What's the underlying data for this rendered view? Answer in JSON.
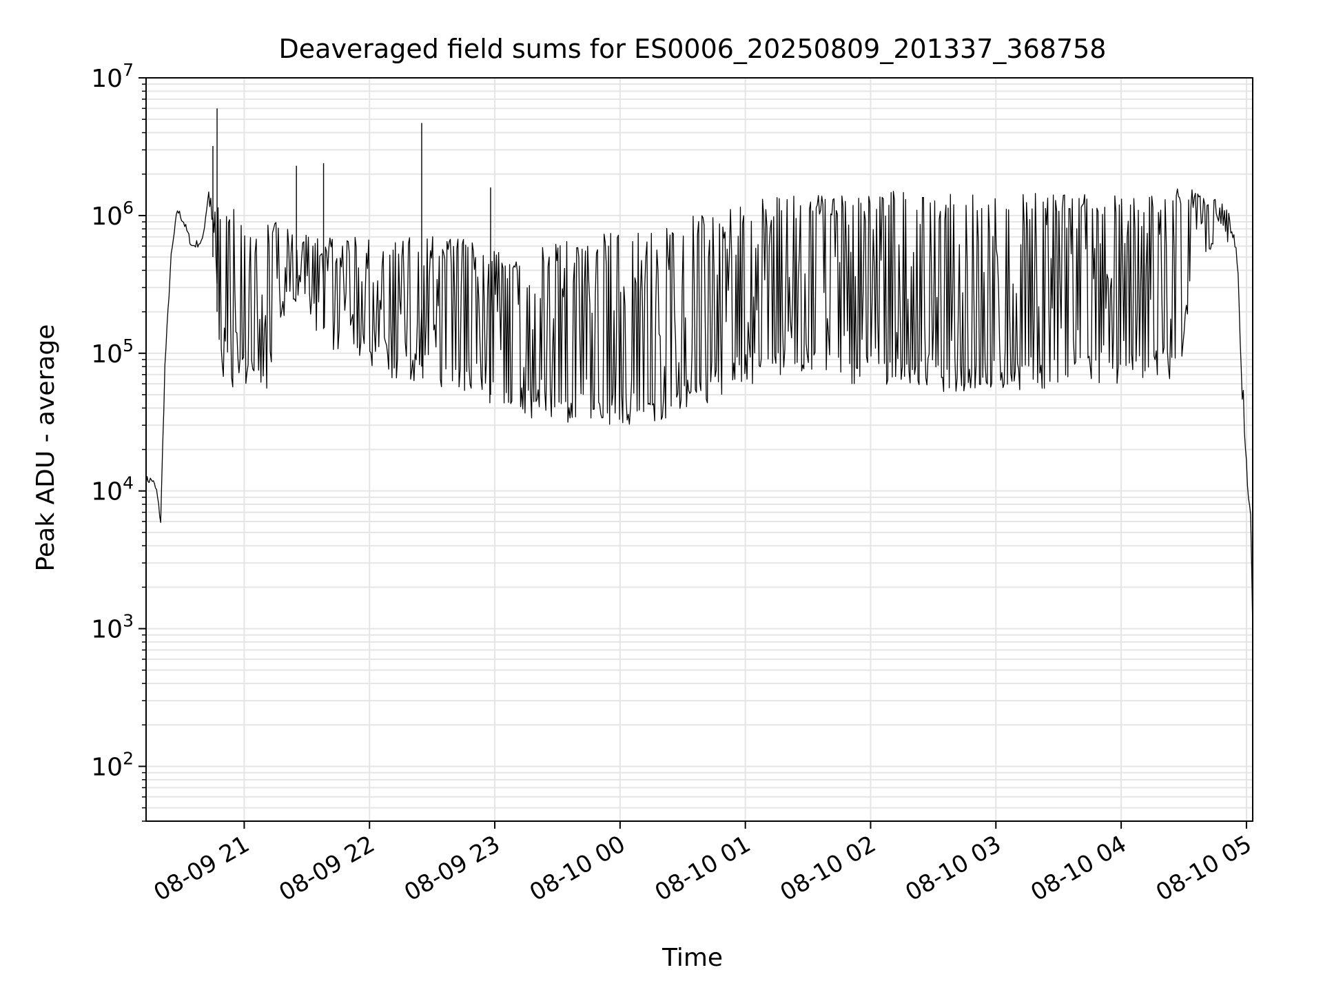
{
  "chart_data": {
    "type": "line",
    "title": "Deaveraged field sums for ES0006_20250809_201337_368758",
    "xlabel": "Time",
    "ylabel": "Peak ADU - average",
    "yscale": "log",
    "ylim": [
      40,
      10000000
    ],
    "xlim": [
      "2025-08-09 20:13",
      "2025-08-10 05:03"
    ],
    "grid": true,
    "legend": "none",
    "line_color": "#000000",
    "grid_color": "#e5e5e5",
    "x_ticks": [
      {
        "t": "2025-08-09 21:00",
        "label": "08-09 21"
      },
      {
        "t": "2025-08-09 22:00",
        "label": "08-09 22"
      },
      {
        "t": "2025-08-09 23:00",
        "label": "08-09 23"
      },
      {
        "t": "2025-08-10 00:00",
        "label": "08-10 00"
      },
      {
        "t": "2025-08-10 01:00",
        "label": "08-10 01"
      },
      {
        "t": "2025-08-10 02:00",
        "label": "08-10 02"
      },
      {
        "t": "2025-08-10 03:00",
        "label": "08-10 03"
      },
      {
        "t": "2025-08-10 04:00",
        "label": "08-10 04"
      },
      {
        "t": "2025-08-10 05:00",
        "label": "08-10 05"
      }
    ],
    "y_ticks": [
      {
        "value": 100,
        "base": "10",
        "exp": "2"
      },
      {
        "value": 1000,
        "base": "10",
        "exp": "3"
      },
      {
        "value": 10000,
        "base": "10",
        "exp": "4"
      },
      {
        "value": 100000,
        "base": "10",
        "exp": "5"
      },
      {
        "value": 1000000,
        "base": "10",
        "exp": "6"
      },
      {
        "value": 10000000,
        "base": "10",
        "exp": "7"
      }
    ],
    "series": [
      {
        "x": [
          "2025-08-09 20:13",
          "2025-08-09 20:16",
          "2025-08-09 20:18",
          "2025-08-09 20:20",
          "2025-08-09 20:22",
          "2025-08-09 20:25",
          "2025-08-09 20:28",
          "2025-08-09 20:31",
          "2025-08-09 20:35",
          "2025-08-09 20:40",
          "2025-08-09 20:43",
          "2025-08-09 20:45",
          "2025-08-09 20:47",
          "2025-08-09 20:49",
          "2025-08-09 20:52",
          "2025-08-09 20:55",
          "2025-08-09 20:58",
          "2025-08-09 21:03",
          "2025-08-09 21:08",
          "2025-08-09 21:13",
          "2025-08-09 21:18",
          "2025-08-09 21:23",
          "2025-08-09 21:28",
          "2025-08-09 21:34",
          "2025-08-09 21:40",
          "2025-08-09 21:46",
          "2025-08-09 21:52",
          "2025-08-09 21:58",
          "2025-08-09 22:05",
          "2025-08-09 22:15",
          "2025-08-09 22:25",
          "2025-08-09 22:35",
          "2025-08-09 22:45",
          "2025-08-09 22:55",
          "2025-08-09 23:05",
          "2025-08-09 23:15",
          "2025-08-09 23:25",
          "2025-08-09 23:35",
          "2025-08-09 23:45",
          "2025-08-09 23:55",
          "2025-08-10 00:05",
          "2025-08-10 00:15",
          "2025-08-10 00:25",
          "2025-08-10 00:35",
          "2025-08-10 00:45",
          "2025-08-10 00:55",
          "2025-08-10 01:05",
          "2025-08-10 01:20",
          "2025-08-10 01:35",
          "2025-08-10 01:50",
          "2025-08-10 02:05",
          "2025-08-10 02:20",
          "2025-08-10 02:35",
          "2025-08-10 02:50",
          "2025-08-10 03:05",
          "2025-08-10 03:20",
          "2025-08-10 03:35",
          "2025-08-10 03:50",
          "2025-08-10 04:05",
          "2025-08-10 04:20",
          "2025-08-10 04:28",
          "2025-08-10 04:35",
          "2025-08-10 04:40",
          "2025-08-10 04:45",
          "2025-08-10 04:50",
          "2025-08-10 04:54",
          "2025-08-10 04:56",
          "2025-08-10 04:58",
          "2025-08-10 05:00",
          "2025-08-10 05:01",
          "2025-08-10 05:02",
          "2025-08-10 05:03"
        ],
        "baseline": [
          12000,
          12000,
          10000,
          6000,
          80000,
          500000,
          1100000,
          900000,
          600000,
          650000,
          1500000,
          500000,
          200000,
          90000,
          80000,
          75000,
          72000,
          70000,
          65000,
          60000,
          200000,
          300000,
          350000,
          200000,
          150000,
          120000,
          150000,
          100000,
          90000,
          85000,
          80000,
          75000,
          70000,
          60000,
          50000,
          45000,
          42000,
          40000,
          38000,
          38000,
          40000,
          42000,
          45000,
          50000,
          60000,
          70000,
          80000,
          85000,
          80000,
          75000,
          70000,
          70000,
          70000,
          70000,
          72000,
          72000,
          75000,
          78000,
          80000,
          85000,
          90000,
          450000,
          500000,
          600000,
          900000,
          700000,
          300000,
          50000,
          10000,
          9000,
          7000,
          1000
        ],
        "envelope": [
          12000,
          12000,
          10000,
          6000,
          80000,
          500000,
          1100000,
          900000,
          600000,
          650000,
          1500000,
          1400000,
          1300000,
          1250000,
          1200000,
          1200000,
          1100000,
          700000,
          800000,
          900000,
          1000000,
          800000,
          750000,
          700000,
          700000,
          700000,
          700000,
          700000,
          650000,
          700000,
          750000,
          750000,
          700000,
          650000,
          500000,
          550000,
          600000,
          650000,
          700000,
          750000,
          800000,
          850000,
          900000,
          1000000,
          1100000,
          1200000,
          1300000,
          1400000,
          1400000,
          1450000,
          1500000,
          1500000,
          1500000,
          1500000,
          1500000,
          1500000,
          1500000,
          1450000,
          1400000,
          1450000,
          1600000,
          1550000,
          1500000,
          1400000,
          1200000,
          700000,
          400000,
          80000,
          20000,
          10000,
          7000,
          1000
        ]
      }
    ],
    "spikes": [
      {
        "x": "2025-08-09 20:47",
        "y": 6000000
      },
      {
        "x": "2025-08-09 20:45",
        "y": 3200000
      },
      {
        "x": "2025-08-09 21:25",
        "y": 2300000
      },
      {
        "x": "2025-08-09 21:38",
        "y": 2400000
      },
      {
        "x": "2025-08-09 22:25",
        "y": 4700000
      },
      {
        "x": "2025-08-09 22:58",
        "y": 1600000
      }
    ]
  }
}
